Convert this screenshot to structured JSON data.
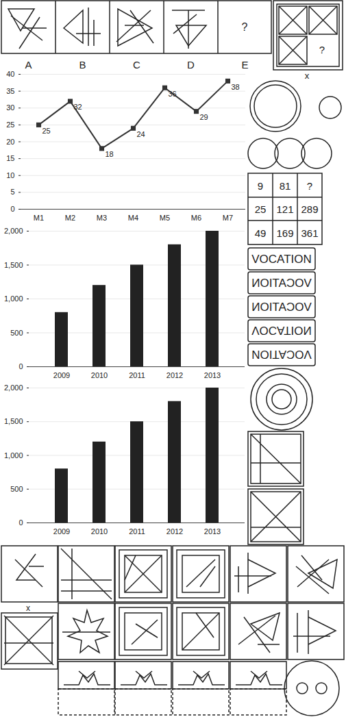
{
  "panels": {
    "top_row_labels": [
      "A",
      "B",
      "C",
      "D",
      "E"
    ],
    "top_row_missing": "?",
    "corner_missing": "?",
    "corner_label": "x",
    "bottom_label": "x"
  },
  "number_grid": [
    [
      9,
      81,
      "?"
    ],
    [
      25,
      121,
      289
    ],
    [
      49,
      169,
      361
    ]
  ],
  "word_options": [
    "VOCATION",
    "VOCATION",
    "VOCATION",
    "VOCATION",
    "VOCATION"
  ],
  "chart_data": [
    {
      "type": "line",
      "categories": [
        "M1",
        "M2",
        "M3",
        "M4",
        "M5",
        "M6",
        "M7"
      ],
      "values": [
        25,
        32,
        18,
        24,
        36,
        29,
        38
      ],
      "color": "#333333",
      "marker": "square",
      "data_labels": true,
      "ylim": [
        0,
        40
      ],
      "yticks": [
        0,
        5,
        10,
        15,
        20,
        25,
        30,
        35,
        40
      ],
      "grid": true
    },
    {
      "type": "bar",
      "categories": [
        "2009",
        "2010",
        "2011",
        "2012",
        "2013"
      ],
      "values": [
        800,
        1200,
        1500,
        1800,
        2000
      ],
      "color": "#222222",
      "ylim": [
        0,
        2000
      ],
      "yticks": [
        0,
        500,
        1000,
        1500,
        2000
      ],
      "grid": true
    },
    {
      "type": "bar",
      "categories": [
        "2009",
        "2010",
        "2011",
        "2012",
        "2013"
      ],
      "values": [
        800,
        1200,
        1500,
        1800,
        2000
      ],
      "color": "#222222",
      "ylim": [
        0,
        2000
      ],
      "yticks": [
        0,
        500,
        1000,
        1500,
        2000
      ],
      "grid": true
    }
  ]
}
